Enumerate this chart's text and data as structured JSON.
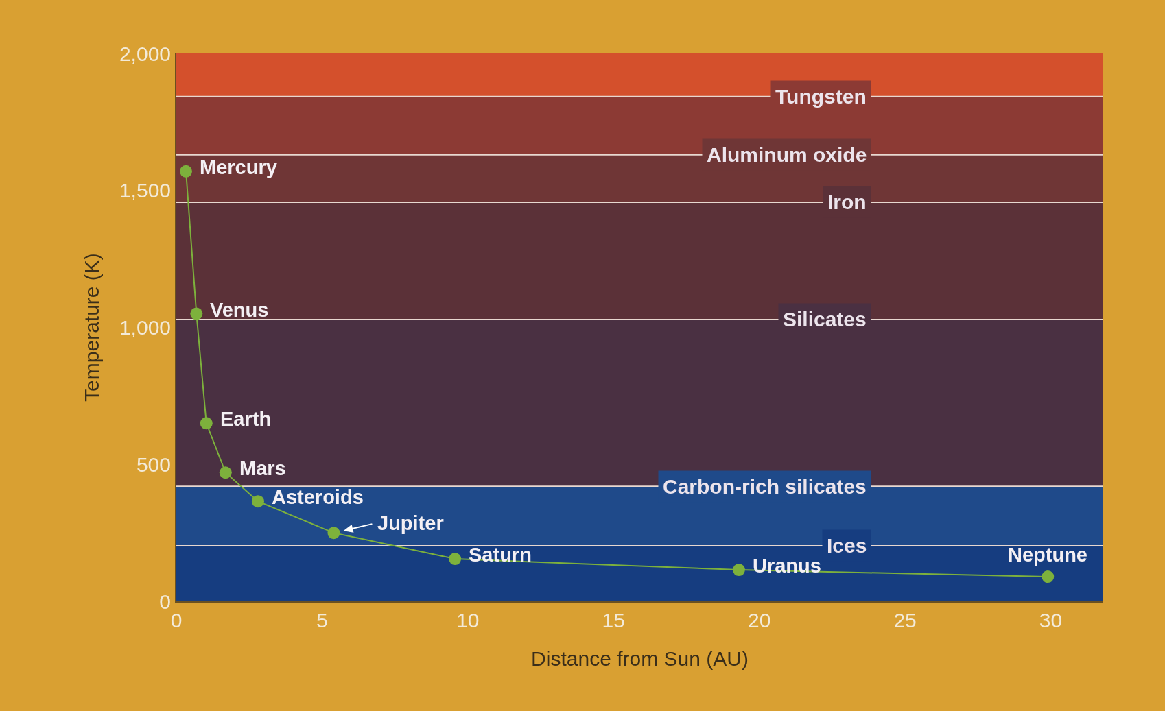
{
  "chart_data": {
    "type": "line",
    "xlabel": "Distance from Sun (AU)",
    "ylabel": "Temperature (K)",
    "x": [
      0.33,
      0.69,
      1.03,
      1.69,
      2.8,
      5.4,
      9.56,
      19.3,
      29.9
    ],
    "values": [
      1570,
      1050,
      650,
      470,
      365,
      250,
      155,
      115,
      90
    ],
    "color": "#7db13c",
    "marker": "circle",
    "line_style": "solid",
    "xlim": [
      0,
      31.8
    ],
    "xticks": [
      0,
      5,
      10,
      15,
      20,
      25,
      30
    ],
    "ylim": [
      0,
      2000
    ],
    "yticks": [
      0,
      {
        "value": 500,
        "label": "500"
      },
      {
        "value": 1000,
        "label": "1,000"
      },
      {
        "value": 1500,
        "label": "1,500"
      },
      {
        "value": 2000,
        "label": "2,000"
      }
    ],
    "bands": [
      {
        "axis": "y",
        "from": 1843,
        "to": 2000,
        "color": "#d4502c"
      },
      {
        "axis": "y",
        "from": 1630,
        "to": 1843,
        "color": "#8c3a34"
      },
      {
        "axis": "y",
        "from": 1457,
        "to": 1630,
        "color": "#6f3636"
      },
      {
        "axis": "y",
        "from": 1029,
        "to": 1457,
        "color": "#5b3138"
      },
      {
        "axis": "y",
        "from": 420,
        "to": 1029,
        "color": "#4a3042"
      },
      {
        "axis": "y",
        "from": 203,
        "to": 420,
        "color": "#1f4a8a"
      },
      {
        "axis": "y",
        "from": 0,
        "to": 203,
        "color": "#163d80"
      }
    ],
    "ref_lines": [
      {
        "axis": "y",
        "value": 1843,
        "label": "Tungsten",
        "color": "#e8d8d0"
      },
      {
        "axis": "y",
        "value": 1630,
        "label": "Aluminum oxide",
        "color": "#e8d8d0"
      },
      {
        "axis": "y",
        "value": 1457,
        "label": "Iron",
        "color": "#e8d8d0"
      },
      {
        "axis": "y",
        "value": 1029,
        "label": "Silicates",
        "color": "#e8d8d0"
      },
      {
        "axis": "y",
        "value": 420,
        "label": "Carbon-rich silicates",
        "color": "#e8d8d0"
      },
      {
        "axis": "y",
        "value": 203,
        "label": "Ices",
        "color": "#e8d8d0"
      }
    ],
    "annotations": [
      {
        "text": "Mercury",
        "x": 0.33,
        "y": 1570
      },
      {
        "text": "Venus",
        "x": 0.69,
        "y": 1050
      },
      {
        "text": "Earth",
        "x": 1.03,
        "y": 650
      },
      {
        "text": "Mars",
        "x": 1.69,
        "y": 470
      },
      {
        "text": "Asteroids",
        "x": 2.8,
        "y": 365
      },
      {
        "text": "Jupiter",
        "x": 5.4,
        "y": 250
      },
      {
        "text": "Saturn",
        "x": 9.56,
        "y": 155
      },
      {
        "text": "Uranus",
        "x": 19.3,
        "y": 115
      },
      {
        "text": "Neptune",
        "x": 29.9,
        "y": 90
      }
    ]
  }
}
